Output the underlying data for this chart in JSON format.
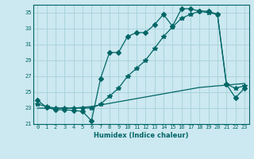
{
  "xlabel": "Humidex (Indice chaleur)",
  "ylabel": "",
  "bg_color": "#cce8f0",
  "grid_color": "#aad4dc",
  "line_color": "#006666",
  "xlim": [
    -0.5,
    23.5
  ],
  "ylim": [
    21,
    36
  ],
  "yticks": [
    21,
    23,
    25,
    27,
    29,
    31,
    33,
    35
  ],
  "xticks": [
    0,
    1,
    2,
    3,
    4,
    5,
    6,
    7,
    8,
    9,
    10,
    11,
    12,
    13,
    14,
    15,
    16,
    17,
    18,
    19,
    20,
    21,
    22,
    23
  ],
  "line1_x": [
    0,
    1,
    2,
    3,
    4,
    5,
    6,
    7,
    8,
    9,
    10,
    11,
    12,
    13,
    14,
    15,
    16,
    17,
    18,
    19,
    20,
    21,
    22,
    23
  ],
  "line1_y": [
    23.0,
    23.0,
    23.0,
    23.0,
    23.0,
    23.1,
    23.2,
    23.4,
    23.6,
    23.8,
    24.0,
    24.2,
    24.4,
    24.6,
    24.8,
    25.0,
    25.2,
    25.4,
    25.6,
    25.7,
    25.8,
    25.9,
    26.0,
    26.1
  ],
  "line2_x": [
    0,
    1,
    2,
    3,
    4,
    5,
    6,
    7,
    8,
    9,
    10,
    11,
    12,
    13,
    14,
    15,
    16,
    17,
    18,
    19,
    20,
    21,
    22,
    23
  ],
  "line2_y": [
    23.5,
    23.2,
    23.0,
    23.0,
    23.0,
    23.0,
    23.0,
    23.5,
    24.5,
    25.5,
    27.0,
    28.0,
    29.0,
    30.5,
    32.0,
    33.2,
    34.3,
    34.8,
    35.2,
    35.0,
    34.8,
    26.0,
    25.5,
    25.8
  ],
  "line3_x": [
    0,
    1,
    2,
    3,
    4,
    5,
    6,
    7,
    8,
    9,
    10,
    11,
    12,
    13,
    14,
    15,
    16,
    17,
    18,
    19,
    20,
    21,
    22,
    23
  ],
  "line3_y": [
    24.0,
    23.1,
    22.8,
    22.8,
    22.7,
    22.6,
    21.4,
    26.7,
    30.0,
    30.0,
    32.0,
    32.5,
    32.5,
    33.5,
    34.8,
    33.3,
    35.5,
    35.5,
    35.2,
    35.2,
    34.8,
    26.0,
    24.3,
    25.5
  ],
  "marker2": "*",
  "marker3": "D",
  "marker2_size": 4,
  "marker3_size": 3,
  "linewidth": 0.9,
  "tick_fontsize": 5,
  "xlabel_fontsize": 6
}
